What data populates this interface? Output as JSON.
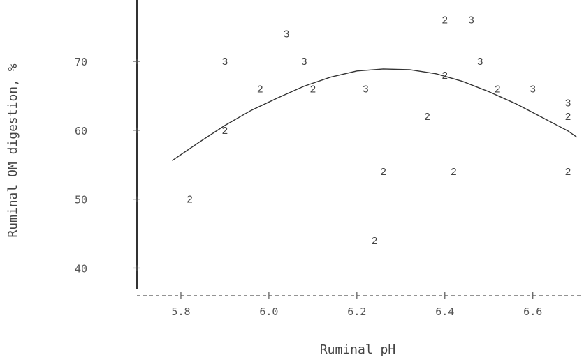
{
  "chart_data": {
    "type": "scatter",
    "title": "",
    "xlabel": "Ruminal pH",
    "ylabel": "Ruminal OM digestion, %",
    "xlim": [
      5.7,
      6.71
    ],
    "ylim": [
      36,
      78.5
    ],
    "xticks": [
      5.8,
      6.0,
      6.2,
      6.4,
      6.6
    ],
    "xtick_labels": [
      "5.8",
      "6.0",
      "6.2",
      "6.4",
      "6.6"
    ],
    "yticks": [
      40,
      50,
      60,
      70
    ],
    "ytick_labels": [
      "40",
      "50",
      "60",
      "70"
    ],
    "grid": false,
    "legend": "none",
    "points": [
      {
        "x": 5.82,
        "y": 50,
        "label": "2"
      },
      {
        "x": 5.9,
        "y": 60,
        "label": "2"
      },
      {
        "x": 5.9,
        "y": 70,
        "label": "3"
      },
      {
        "x": 5.98,
        "y": 66,
        "label": "2"
      },
      {
        "x": 6.04,
        "y": 74,
        "label": "3"
      },
      {
        "x": 6.08,
        "y": 70,
        "label": "3"
      },
      {
        "x": 6.1,
        "y": 66,
        "label": "2"
      },
      {
        "x": 6.22,
        "y": 66,
        "label": "3"
      },
      {
        "x": 6.24,
        "y": 44,
        "label": "2"
      },
      {
        "x": 6.26,
        "y": 54,
        "label": "2"
      },
      {
        "x": 6.36,
        "y": 62,
        "label": "2"
      },
      {
        "x": 6.4,
        "y": 76,
        "label": "2"
      },
      {
        "x": 6.4,
        "y": 68,
        "label": "2"
      },
      {
        "x": 6.42,
        "y": 54,
        "label": "2"
      },
      {
        "x": 6.46,
        "y": 76,
        "label": "3"
      },
      {
        "x": 6.48,
        "y": 70,
        "label": "3"
      },
      {
        "x": 6.52,
        "y": 66,
        "label": "2"
      },
      {
        "x": 6.6,
        "y": 66,
        "label": "3"
      },
      {
        "x": 6.68,
        "y": 64,
        "label": "3"
      },
      {
        "x": 6.68,
        "y": 62,
        "label": "2"
      },
      {
        "x": 6.68,
        "y": 54,
        "label": "2"
      }
    ],
    "fit_curve": {
      "type": "quadratic",
      "x": [
        5.78,
        5.84,
        5.9,
        5.96,
        6.02,
        6.08,
        6.14,
        6.2,
        6.26,
        6.32,
        6.38,
        6.44,
        6.5,
        6.56,
        6.62,
        6.68,
        6.7
      ],
      "y": [
        55.6,
        58.2,
        60.7,
        62.9,
        64.7,
        66.4,
        67.7,
        68.6,
        68.9,
        68.8,
        68.2,
        67.1,
        65.6,
        63.9,
        61.9,
        59.9,
        59.0
      ]
    }
  }
}
